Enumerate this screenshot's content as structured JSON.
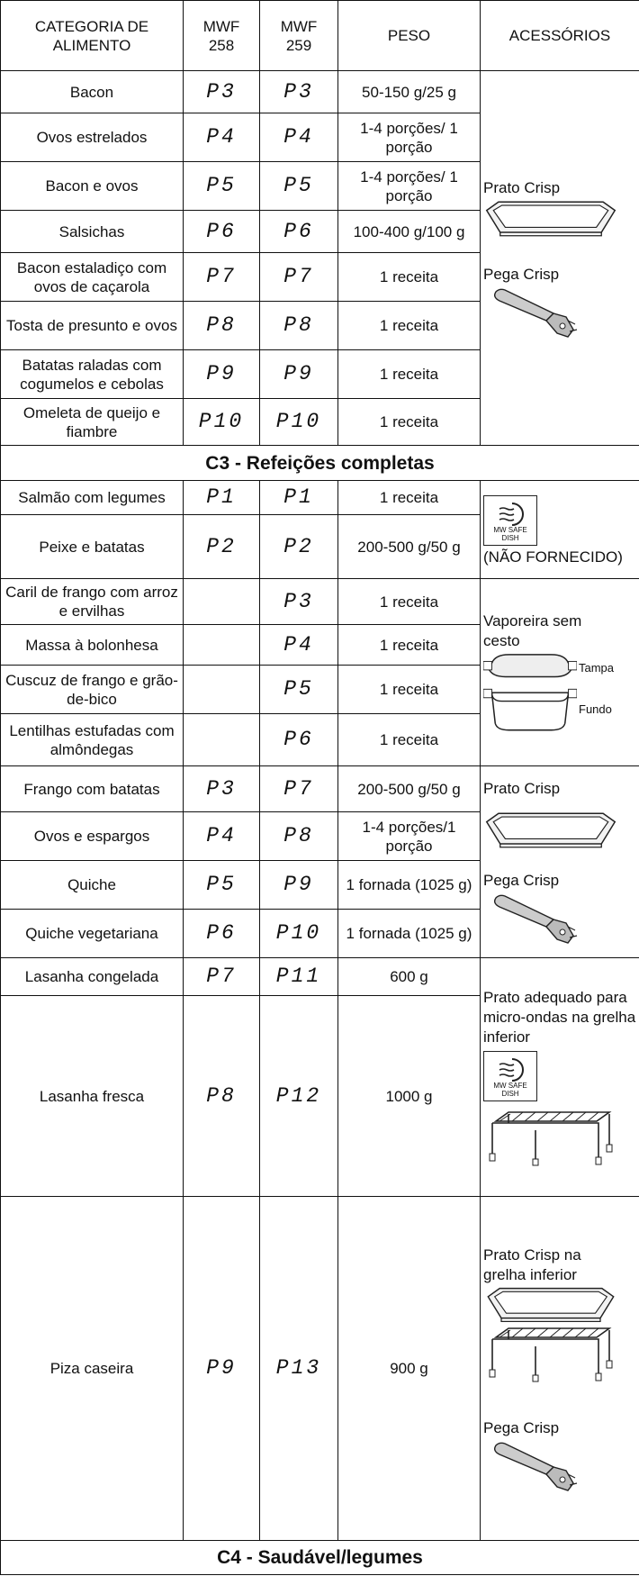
{
  "table": {
    "header": [
      "CATEGORIA DE ALIMENTO",
      "MWF 258",
      "MWF 259",
      "PESO",
      "ACESSÓRIOS"
    ],
    "rows": [
      [
        "Bacon",
        "P3",
        "P3",
        "50-150 g/25 g"
      ],
      [
        "Ovos estrelados",
        "P4",
        "P4",
        "1-4 porções/ 1 porção"
      ],
      [
        "Bacon e ovos",
        "P5",
        "P5",
        "1-4 porções/ 1 porção"
      ],
      [
        "Salsichas",
        "P6",
        "P6",
        "100-400 g/100 g"
      ],
      [
        "Bacon estaladiço com ovos de caçarola",
        "P7",
        "P7",
        "1 receita"
      ],
      [
        "Tosta de presunto e ovos",
        "P8",
        "P8",
        "1 receita"
      ],
      [
        "Batatas raladas com cogumelos e cebolas",
        "P9",
        "P9",
        "1 receita"
      ],
      [
        "Omeleta de queijo e fiambre",
        "P10",
        "P10",
        "1 receita"
      ],
      [
        "Salmão com legumes",
        "P1",
        "P1",
        "1 receita"
      ],
      [
        "Peixe e batatas",
        "P2",
        "P2",
        "200-500 g/50 g"
      ],
      [
        "Caril de frango com arroz e ervilhas",
        null,
        "P3",
        "1 receita"
      ],
      [
        "Massa à bolonhesa",
        null,
        "P4",
        "1 receita"
      ],
      [
        "Cuscuz de frango e grão-de-bico",
        null,
        "P5",
        "1 receita"
      ],
      [
        "Lentilhas estufadas com almôndegas",
        null,
        "P6",
        "1 receita"
      ],
      [
        "Frango com batatas",
        "P3",
        "P7",
        "200-500 g/50 g"
      ],
      [
        "Ovos e espargos",
        "P4",
        "P8",
        "1-4 porções/1 porção"
      ],
      [
        "Quiche",
        "P5",
        "P9",
        "1 fornada (1025 g)"
      ],
      [
        "Quiche vegetariana",
        "P6",
        "P10",
        "1 fornada (1025 g)"
      ],
      [
        "Lasanha congelada",
        "P7",
        "P11",
        "600 g"
      ],
      [
        "Lasanha fresca",
        "P8",
        "P12",
        "1000 g"
      ],
      [
        "Piza caseira",
        "P9",
        "P13",
        "900 g"
      ]
    ],
    "sections": [
      "C3 - Refeições completas",
      "C4 - Saudável/legumes"
    ],
    "accessories": [
      [
        "Prato Crisp",
        "Pega Crisp"
      ],
      [
        "MW SAFE DISH",
        "(NÃO FORNECIDO)"
      ],
      [
        "Vaporeira sem cesto",
        "Tampa",
        "Fundo"
      ],
      [
        "Prato Crisp",
        "Pega Crisp"
      ],
      [
        "Prato adequado para micro-ondas na grelha inferior",
        "MW SAFE DISH"
      ],
      [
        "Prato Crisp na grelha inferior",
        "Pega Crisp"
      ]
    ]
  }
}
